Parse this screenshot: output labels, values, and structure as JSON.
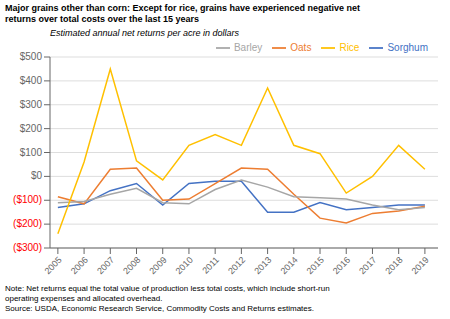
{
  "chart_data": {
    "type": "line",
    "title": [
      "Major grains other than corn: Except for rice, grains have experienced negative net",
      "returns over total costs over the last 15 years"
    ],
    "subtitle": "Estimated annual net returns per acre in dollars",
    "annotations": [
      "Note: Net returns equal the total value of production less total costs, which include short-run",
      "operating expenses and allocated overhead.",
      "Source: USDA, Economic Research Service, Commodity Costs and Returns estimates."
    ],
    "x": [
      2005,
      2006,
      2007,
      2008,
      2009,
      2010,
      2011,
      2012,
      2013,
      2014,
      2015,
      2016,
      2017,
      2018,
      2019
    ],
    "xlim": [
      2004.7,
      2019.5
    ],
    "xticks": [
      2005,
      2006,
      2007,
      2008,
      2009,
      2010,
      2011,
      2012,
      2013,
      2014,
      2015,
      2016,
      2017,
      2018,
      2019
    ],
    "series": [
      {
        "name": "Sorghum",
        "color": "#4472c4",
        "values": [
          -130,
          -115,
          -60,
          -30,
          -120,
          -30,
          -20,
          -20,
          -150,
          -150,
          -110,
          -140,
          -130,
          -120,
          -120
        ]
      },
      {
        "name": "Oats",
        "color": "#ed7d31",
        "values": [
          -85,
          -115,
          30,
          35,
          -100,
          -95,
          -30,
          35,
          30,
          -75,
          -175,
          -195,
          -155,
          -145,
          -125
        ]
      },
      {
        "name": "Barley",
        "color": "#a6a6a6",
        "values": [
          -110,
          -105,
          -75,
          -50,
          -110,
          -115,
          -55,
          -15,
          -45,
          -85,
          -90,
          -95,
          -120,
          -140,
          -130
        ]
      },
      {
        "name": "Rice",
        "color": "#ffc000",
        "values": [
          -240,
          60,
          450,
          65,
          -15,
          130,
          175,
          130,
          370,
          130,
          95,
          -70,
          0,
          130,
          30
        ]
      }
    ],
    "ylim": [
      -300,
      500
    ],
    "yticks": [
      {
        "value": -300,
        "label": "($300)"
      },
      {
        "value": -200,
        "label": "($200)"
      },
      {
        "value": -100,
        "label": "($100)"
      },
      {
        "value": 0,
        "label": "$0"
      },
      {
        "value": 100,
        "label": "$100"
      },
      {
        "value": 200,
        "label": "$200"
      },
      {
        "value": 300,
        "label": "$300"
      },
      {
        "value": 400,
        "label": "$400"
      },
      {
        "value": 500,
        "label": "$500"
      }
    ],
    "grid": true,
    "legend": "upper right"
  }
}
